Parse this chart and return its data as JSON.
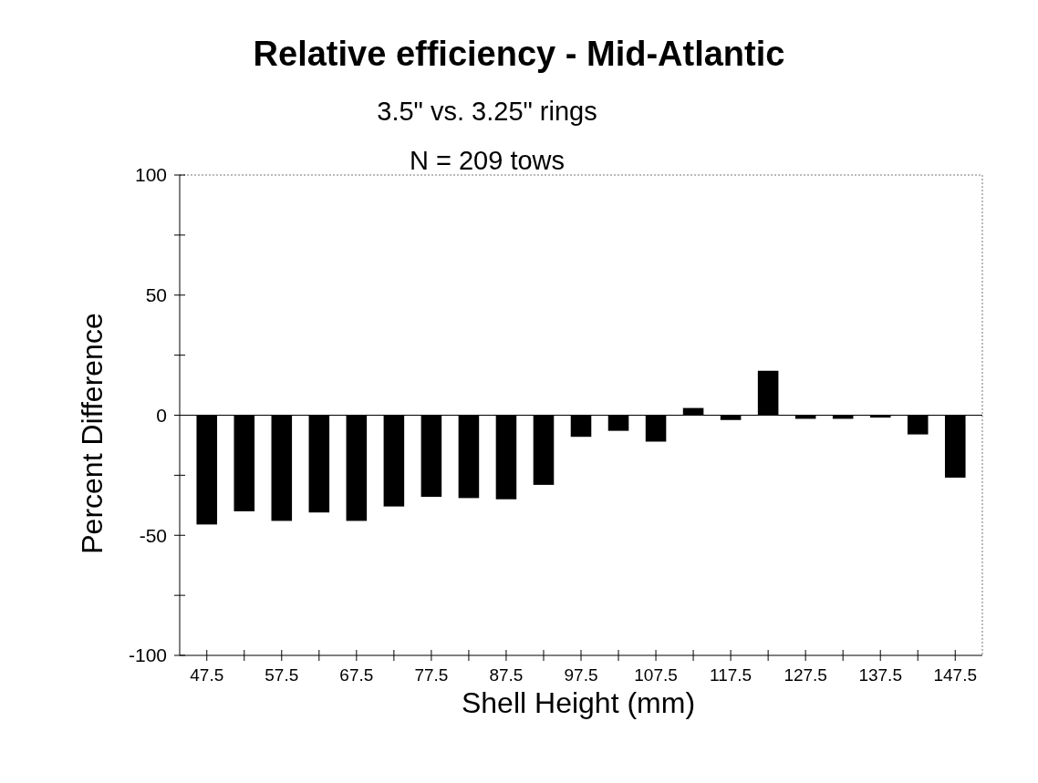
{
  "chart_data": {
    "type": "bar",
    "title": "Relative efficiency - Mid-Atlantic",
    "subtitle": "3.5\" vs. 3.25\" rings",
    "annotations": [
      "N = 209 tows"
    ],
    "xlabel": "Shell Height (mm)",
    "ylabel": "Percent Difference",
    "categories": [
      "47.5",
      null,
      "57.5",
      null,
      "67.5",
      null,
      "77.5",
      null,
      "87.5",
      null,
      "97.5",
      null,
      "107.5",
      null,
      "117.5",
      null,
      "127.5",
      null,
      "137.5",
      null,
      "147.5"
    ],
    "values": [
      -45.5,
      -40,
      -44,
      -40.5,
      -44,
      -38,
      -34,
      -34.5,
      -35,
      -29,
      -9,
      -6.5,
      -11,
      3,
      -2,
      18.5,
      -1.5,
      -1.5,
      -1,
      -8,
      -26
    ],
    "color": "#000000",
    "ylim": [
      -100,
      100
    ],
    "yticks": [
      -100,
      {
        "value": -75,
        "label": null
      },
      -50,
      {
        "value": -25,
        "label": null
      },
      0,
      {
        "value": 25,
        "label": null
      },
      50,
      {
        "value": 75,
        "label": null
      },
      100
    ]
  }
}
